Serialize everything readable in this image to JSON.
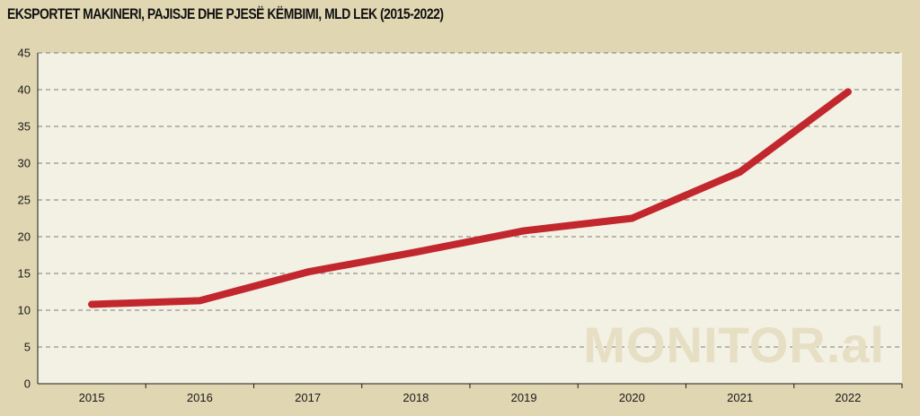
{
  "chart_data": {
    "type": "line",
    "title": "EKSPORTET MAKINERI, PAJISJE DHE PJESË KËMBIMI, MLD LEK (2015-2022)",
    "xlabel": "",
    "ylabel": "",
    "categories": [
      "2015",
      "2016",
      "2017",
      "2018",
      "2019",
      "2020",
      "2021",
      "2022"
    ],
    "series": [
      {
        "values": [
          10.8,
          11.3,
          15.2,
          17.9,
          20.8,
          22.5,
          28.8,
          39.7
        ],
        "color": "#c1272d"
      }
    ],
    "ylim": [
      0,
      45
    ],
    "yticks": [
      0,
      5,
      10,
      15,
      20,
      25,
      30,
      35,
      40,
      45
    ],
    "grid": "horizontal-dashed",
    "legend": "none"
  },
  "watermark": "MONITOR.al",
  "colors": {
    "background": "#e0d6b2",
    "plot_background": "#f3f0e4",
    "line": "#c1272d",
    "grid": "#555555"
  }
}
